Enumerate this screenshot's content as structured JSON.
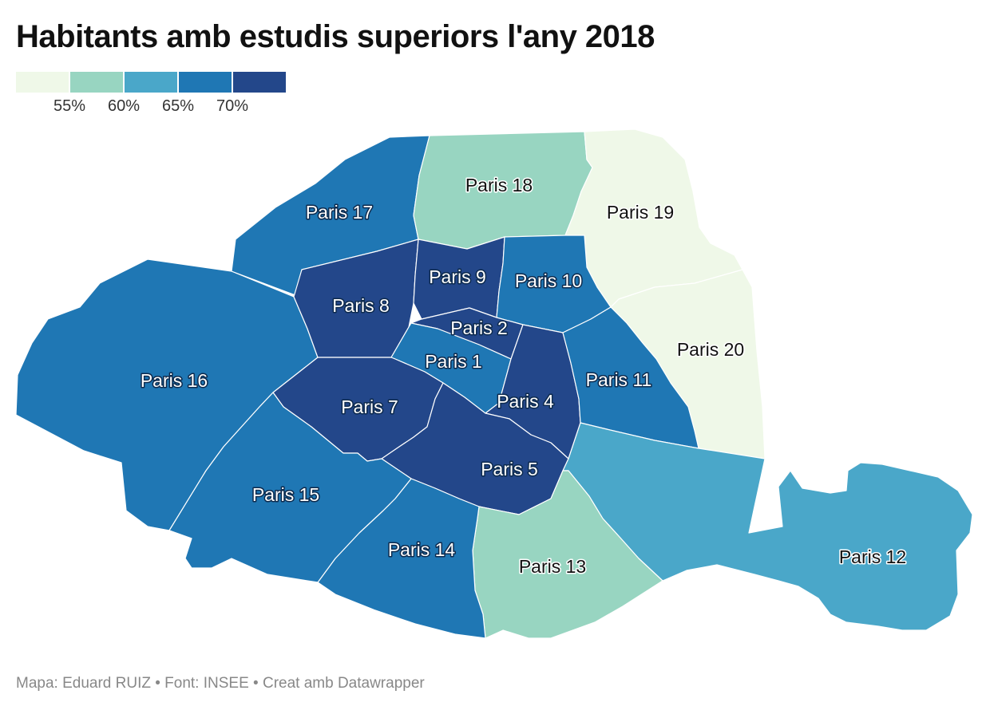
{
  "title": "Habitants amb estudis superiors l'any 2018",
  "legend": {
    "colors": [
      "#eff8e8",
      "#98d5c1",
      "#4aa7c9",
      "#1f77b4",
      "#23478a"
    ],
    "ticks": [
      "55%",
      "60%",
      "65%",
      "70%"
    ]
  },
  "districts": [
    {
      "label": "Paris 1",
      "bin": 3
    },
    {
      "label": "Paris 2",
      "bin": 4
    },
    {
      "label": "Paris 4",
      "bin": 4
    },
    {
      "label": "Paris 5",
      "bin": 4
    },
    {
      "label": "Paris 7",
      "bin": 4
    },
    {
      "label": "Paris 8",
      "bin": 4
    },
    {
      "label": "Paris 9",
      "bin": 4
    },
    {
      "label": "Paris 10",
      "bin": 3
    },
    {
      "label": "Paris 11",
      "bin": 3
    },
    {
      "label": "Paris 12",
      "bin": 2
    },
    {
      "label": "Paris 13",
      "bin": 1
    },
    {
      "label": "Paris 14",
      "bin": 3
    },
    {
      "label": "Paris 15",
      "bin": 3
    },
    {
      "label": "Paris 16",
      "bin": 3
    },
    {
      "label": "Paris 17",
      "bin": 3
    },
    {
      "label": "Paris 18",
      "bin": 1
    },
    {
      "label": "Paris 19",
      "bin": 0
    },
    {
      "label": "Paris 20",
      "bin": 0
    }
  ],
  "footer": "Mapa: Eduard RUIZ • Font: INSEE • Creat amb Datawrapper"
}
